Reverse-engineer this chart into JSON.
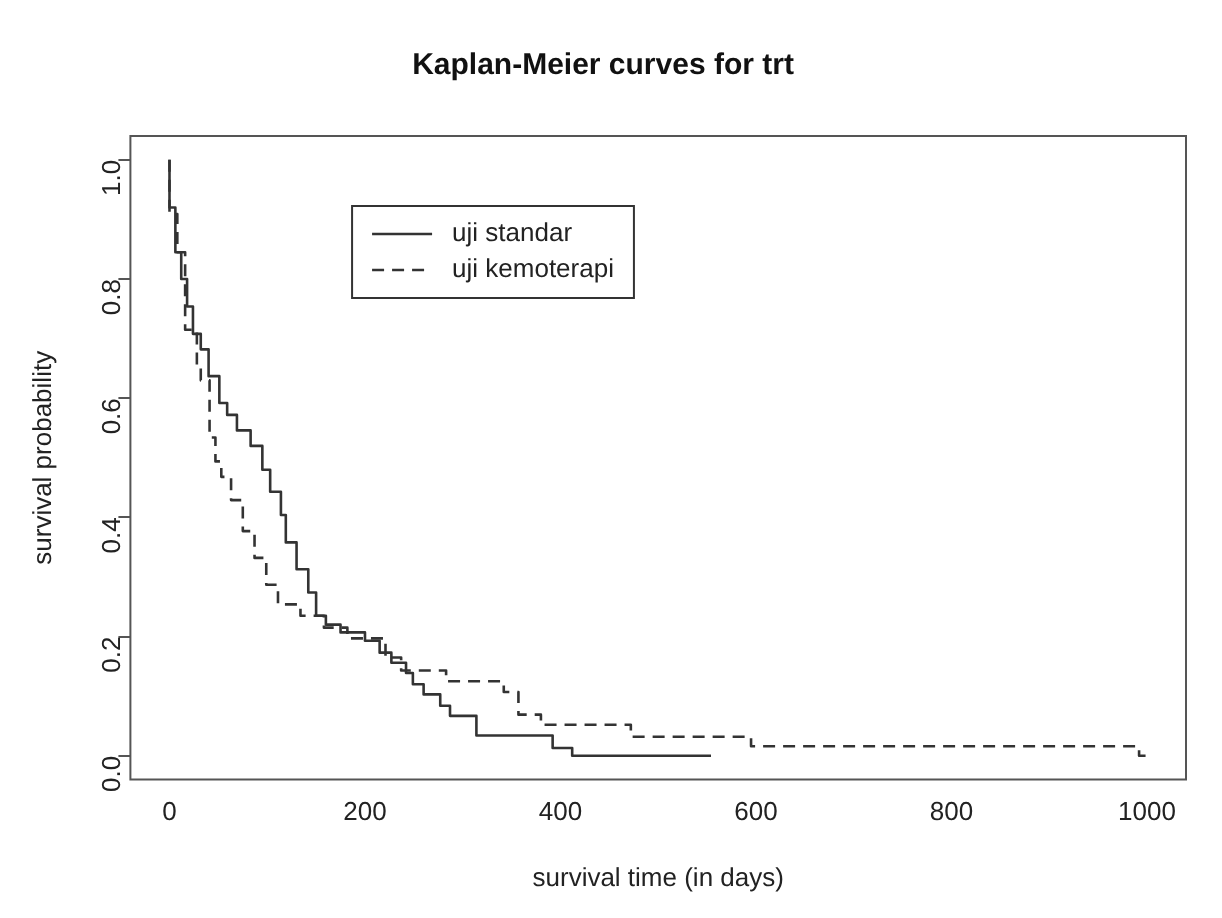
{
  "chart_data": {
    "type": "step",
    "title": "Kaplan-Meier curves for trt",
    "xlabel": "survival time (in days)",
    "ylabel": "survival probability",
    "xlim": [
      -40,
      1040
    ],
    "ylim": [
      -0.04,
      1.04
    ],
    "xticks": [
      0,
      200,
      400,
      600,
      800,
      1000
    ],
    "yticks": [
      {
        "value": 0,
        "label": "0.0"
      },
      {
        "value": 0.2,
        "label": "0.2"
      },
      {
        "value": 0.4,
        "label": "0.4"
      },
      {
        "value": 0.6,
        "label": "0.6"
      },
      {
        "value": 0.8,
        "label": "0.8"
      },
      {
        "value": 1,
        "label": "1.0"
      }
    ],
    "grid": false,
    "legend": "top",
    "marker": "none",
    "series": [
      {
        "name": "uji standar",
        "color": "#333333",
        "line_style": "solid",
        "x": [
          0,
          6,
          12,
          18,
          24,
          32,
          40,
          51,
          59,
          69,
          83,
          95,
          103,
          114,
          119,
          130,
          142,
          150,
          160,
          175,
          200,
          215,
          227,
          242,
          249,
          260,
          277,
          287,
          314,
          392,
          412,
          554
        ],
        "values": [
          1,
          0.92,
          0.845,
          0.8,
          0.754,
          0.708,
          0.682,
          0.637,
          0.592,
          0.572,
          0.546,
          0.52,
          0.48,
          0.443,
          0.404,
          0.358,
          0.313,
          0.274,
          0.235,
          0.22,
          0.207,
          0.193,
          0.173,
          0.156,
          0.139,
          0.12,
          0.103,
          0.084,
          0.067,
          0.034,
          0.013,
          0
        ]
      },
      {
        "name": "uji kemoterapi",
        "color": "#333333",
        "line_style": "dashed",
        "x": [
          0,
          8,
          16,
          28,
          32,
          41,
          47,
          53,
          63,
          75,
          87,
          99,
          111,
          134,
          158,
          182,
          221,
          237,
          283,
          342,
          357,
          380,
          472,
          595,
          992,
          1000
        ],
        "values": [
          1,
          0.909,
          0.845,
          0.715,
          0.65,
          0.63,
          0.534,
          0.494,
          0.468,
          0.429,
          0.377,
          0.332,
          0.287,
          0.254,
          0.235,
          0.215,
          0.197,
          0.165,
          0.143,
          0.125,
          0.107,
          0.069,
          0.052,
          0.032,
          0.016,
          0
        ]
      }
    ]
  }
}
